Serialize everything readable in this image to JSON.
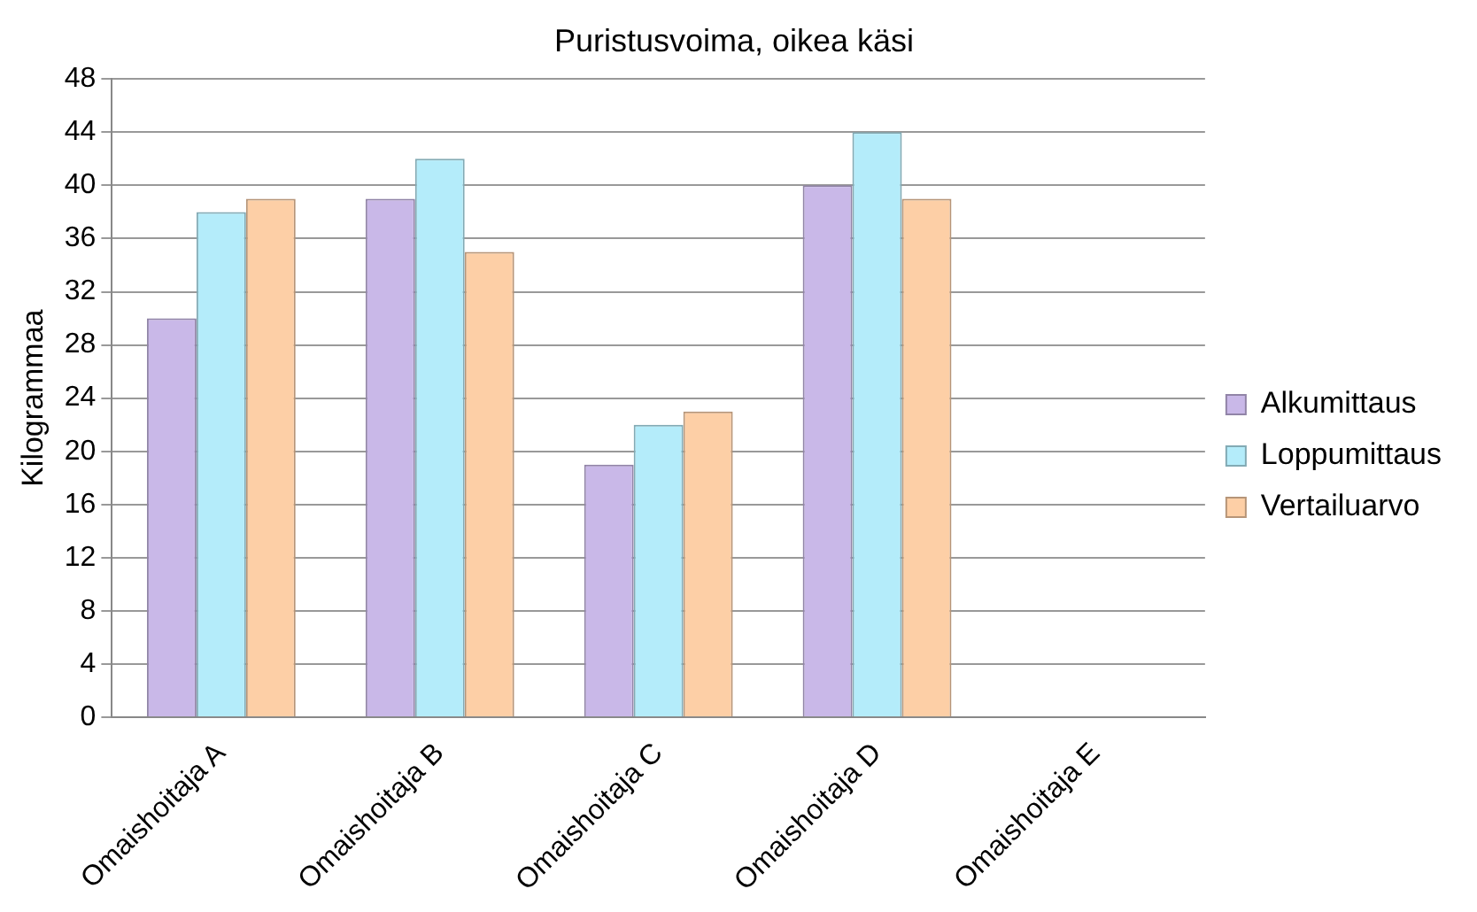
{
  "chart_data": {
    "type": "bar",
    "title": "Puristusvoima, oikea käsi",
    "ylabel": "Kilogrammaa",
    "categories": [
      "Omaishoitaja A",
      "Omaishoitaja B",
      "Omaishoitaja C",
      "Omaishoitaja D",
      "Omaishoitaja E"
    ],
    "series": [
      {
        "name": "Alkumittaus",
        "color": "#c9b8e8",
        "values": [
          30,
          39,
          19,
          40,
          null
        ]
      },
      {
        "name": "Loppumittaus",
        "color": "#b4ecfa",
        "values": [
          38,
          42,
          22,
          44,
          null
        ]
      },
      {
        "name": "Vertailuarvo",
        "color": "#fdcfa6",
        "values": [
          39,
          35,
          23,
          39,
          null
        ]
      }
    ],
    "ylim": [
      0,
      48
    ],
    "yticks": [
      0,
      4,
      8,
      12,
      16,
      20,
      24,
      28,
      32,
      36,
      40,
      44,
      48
    ],
    "grid": "y",
    "legend": "right"
  }
}
